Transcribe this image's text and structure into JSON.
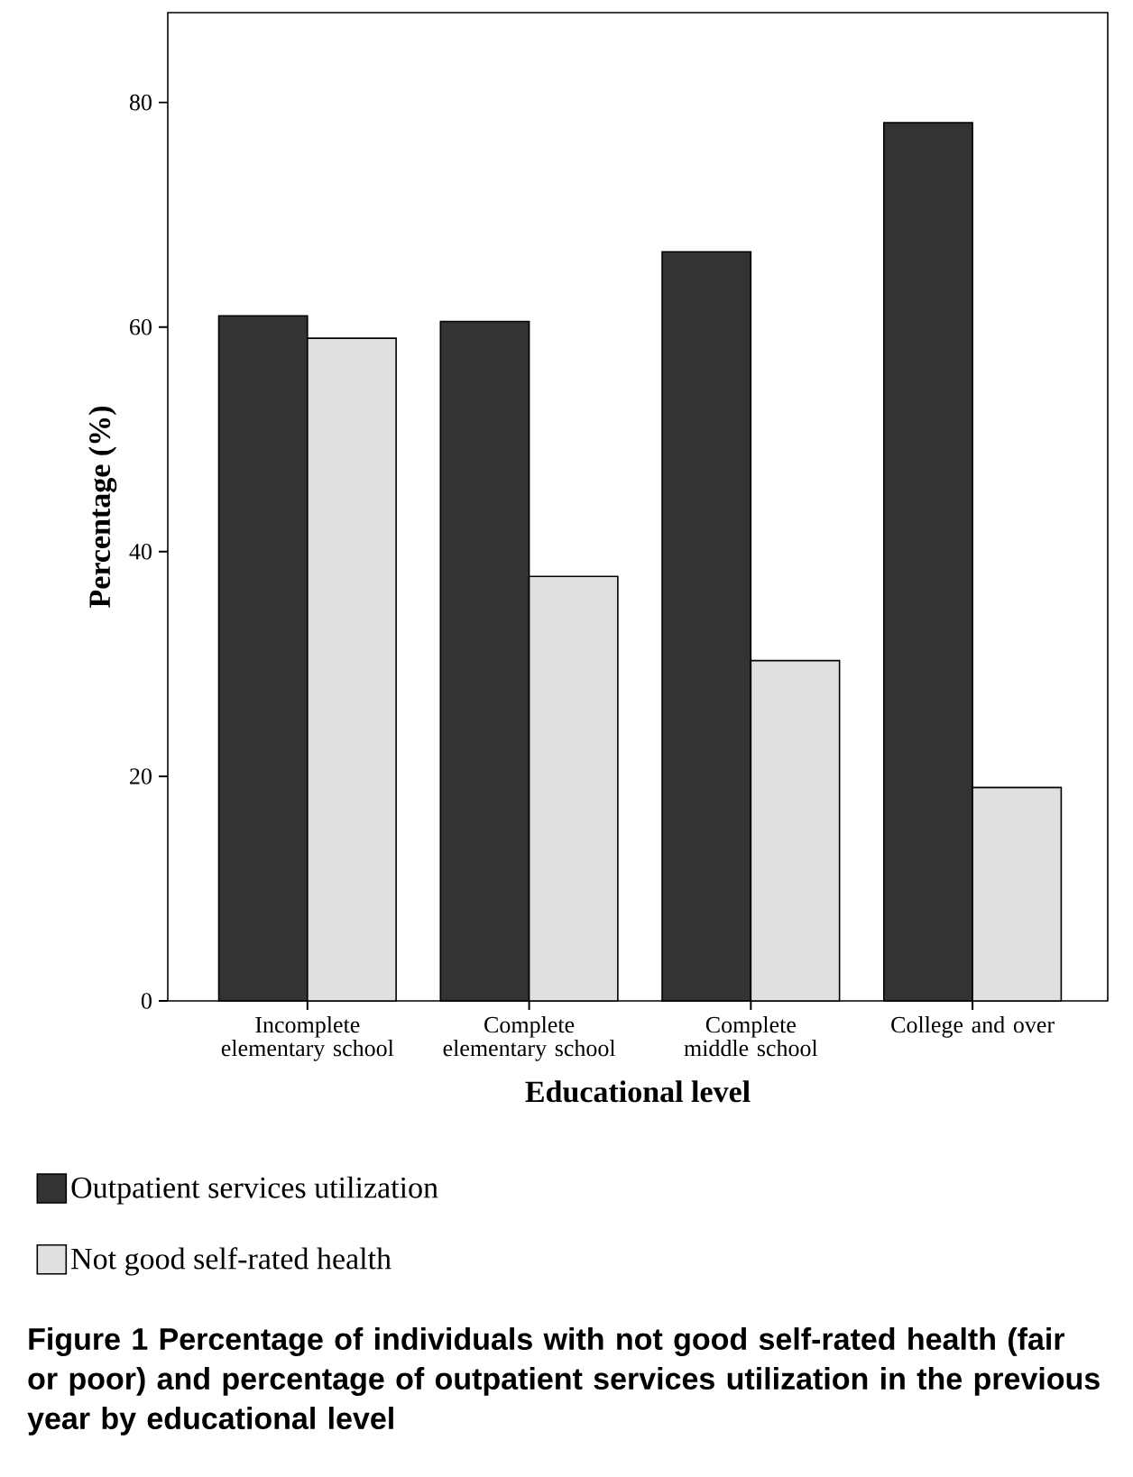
{
  "chart_data": {
    "type": "bar",
    "xlabel": "Educational level",
    "ylabel": "Percentage (%)",
    "categories": [
      "Incomplete elementary school",
      "Complete elementary school",
      "Complete middle school",
      "College and over"
    ],
    "series": [
      {
        "name": "Outpatient services utilization",
        "color": "#333333",
        "values": [
          61,
          60.5,
          66.7,
          78.2
        ]
      },
      {
        "name": "Not good self-rated health",
        "color": "#e0e0e0",
        "values": [
          59,
          37.8,
          30.3,
          19
        ]
      }
    ],
    "ylim": [
      0,
      88
    ],
    "yticks": [
      0,
      20,
      40,
      60,
      80
    ],
    "grid": false,
    "legend": "bottom",
    "annotations": [
      "Figure 1 Percentage of individuals with not good self-rated health (fair or poor) and percentage of outpatient services utilization in the previous year by educational level"
    ]
  }
}
